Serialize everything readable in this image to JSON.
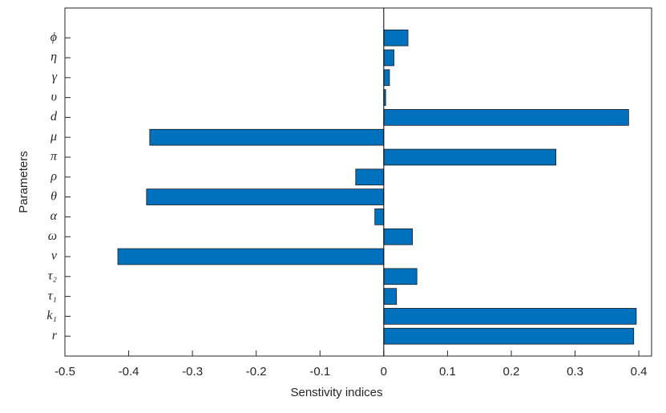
{
  "chart_data": {
    "type": "barh",
    "xlabel": "Senstivity indices",
    "ylabel": "Parameters",
    "categories": [
      "r",
      "k₁",
      "τ₁",
      "τ₂",
      "ν",
      "ω",
      "α",
      "θ",
      "ρ",
      "π",
      "μ",
      "d",
      "υ",
      "γ",
      "η",
      "ϕ"
    ],
    "values": [
      0.392,
      0.396,
      0.02,
      0.052,
      -0.417,
      0.045,
      -0.014,
      -0.372,
      -0.044,
      0.27,
      -0.367,
      0.384,
      0.003,
      0.009,
      0.016,
      0.038
    ],
    "color": "#0072bd",
    "xlim": [
      -0.5,
      0.42
    ],
    "xticks": [
      -0.5,
      -0.4,
      -0.3,
      -0.2,
      -0.1,
      0,
      0.1,
      0.2,
      0.3,
      0.4
    ]
  }
}
